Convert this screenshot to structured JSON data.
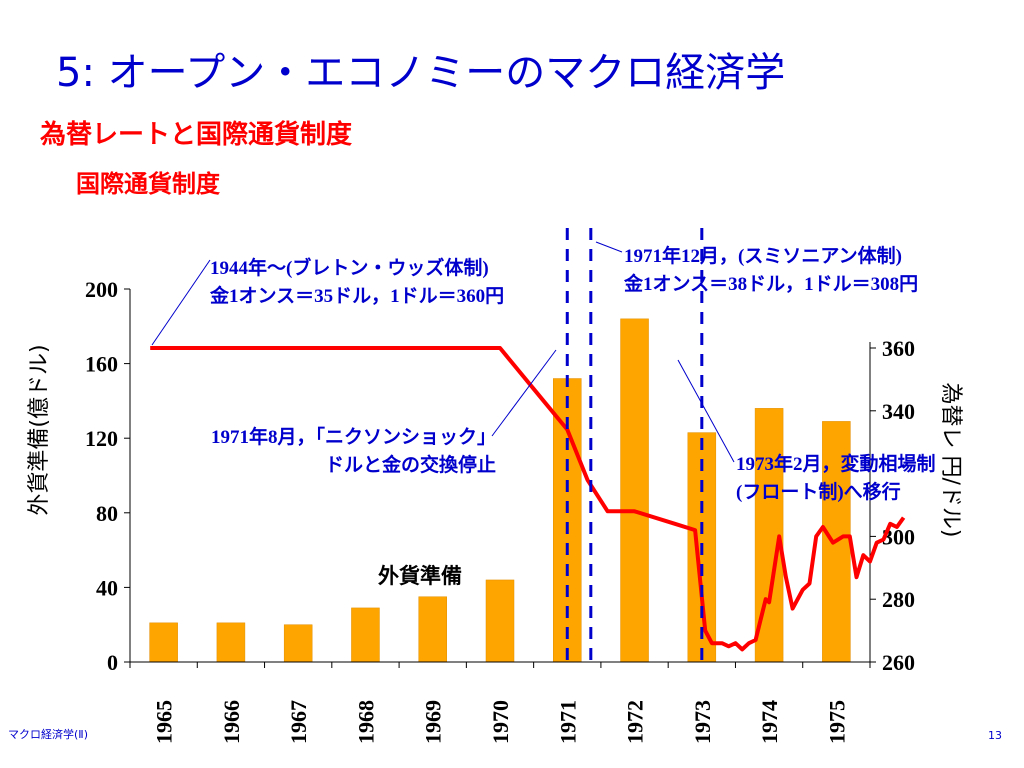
{
  "slide": {
    "title": "5: オープン・エコノミーのマクロ経済学",
    "heading": "為替レートと国際通貨制度",
    "subheading": "国際通貨制度",
    "footer_left": "マクロ経済学(Ⅱ)",
    "page_number": "13"
  },
  "chart_data": {
    "type": "bar+line",
    "categories": [
      "1965",
      "1966",
      "1967",
      "1968",
      "1969",
      "1970",
      "1971",
      "1972",
      "1973",
      "1974",
      "1975"
    ],
    "left_axis": {
      "label": "外貨準備(億ドル)",
      "ylim": [
        0,
        200
      ],
      "ticks": [
        "0",
        "40",
        "80",
        "120",
        "160",
        "200"
      ]
    },
    "right_axis": {
      "label": "為替レ 円/ドル)",
      "ylim": [
        260,
        360
      ],
      "ticks": [
        "260",
        "280",
        "300",
        "340",
        "360"
      ]
    },
    "series": [
      {
        "name": "外貨準備",
        "type": "bar",
        "axis": "left",
        "color": "#ffa500",
        "values": [
          21,
          21,
          20,
          29,
          35,
          44,
          152,
          184,
          123,
          136,
          129
        ]
      },
      {
        "type": "line",
        "axis": "right",
        "color": "#ff0000",
        "points": [
          [
            1964.8,
            360
          ],
          [
            1965,
            360
          ],
          [
            1966,
            360
          ],
          [
            1967,
            360
          ],
          [
            1968,
            360
          ],
          [
            1969,
            360
          ],
          [
            1970,
            360
          ],
          [
            1970.5,
            347
          ],
          [
            1971,
            334
          ],
          [
            1971.3,
            318
          ],
          [
            1971.6,
            308
          ],
          [
            1972,
            308
          ],
          [
            1972.6,
            304
          ],
          [
            1972.9,
            302
          ],
          [
            1973.05,
            270
          ],
          [
            1973.15,
            266
          ],
          [
            1973.3,
            266
          ],
          [
            1973.4,
            265
          ],
          [
            1973.5,
            266
          ],
          [
            1973.6,
            264
          ],
          [
            1973.7,
            266
          ],
          [
            1973.8,
            267
          ],
          [
            1973.95,
            280
          ],
          [
            1974.0,
            279
          ],
          [
            1974.15,
            300
          ],
          [
            1974.25,
            287
          ],
          [
            1974.35,
            277
          ],
          [
            1974.5,
            283
          ],
          [
            1974.6,
            285
          ],
          [
            1974.7,
            300
          ],
          [
            1974.8,
            303
          ],
          [
            1974.95,
            298
          ],
          [
            1975.1,
            300
          ],
          [
            1975.2,
            300
          ],
          [
            1975.3,
            287
          ],
          [
            1975.4,
            294
          ],
          [
            1975.5,
            292
          ],
          [
            1975.6,
            298
          ],
          [
            1975.7,
            299
          ],
          [
            1975.8,
            304
          ],
          [
            1975.9,
            303
          ],
          [
            1976.0,
            306
          ]
        ]
      }
    ],
    "markers": [
      1971.0,
      1971.35,
      1973.0
    ],
    "annotations": [
      {
        "id": "bretton",
        "lines": [
          "1944年～(ブレトン・ウッズ体制)",
          "金1オンス＝35ドル，1ドル＝360円"
        ]
      },
      {
        "id": "smithsonian",
        "lines": [
          "1971年12月，(スミソニアン体制)",
          "金1オンス＝38ドル，1ドル＝308円"
        ]
      },
      {
        "id": "nixon",
        "lines": [
          "1971年8月，「ニクソンショック」",
          "ドルと金の交換停止"
        ]
      },
      {
        "id": "float",
        "lines": [
          "1973年2月，変動相場制",
          "(フロート制)へ移行"
        ]
      }
    ],
    "series_label": "外貨準備",
    "grid": false
  }
}
